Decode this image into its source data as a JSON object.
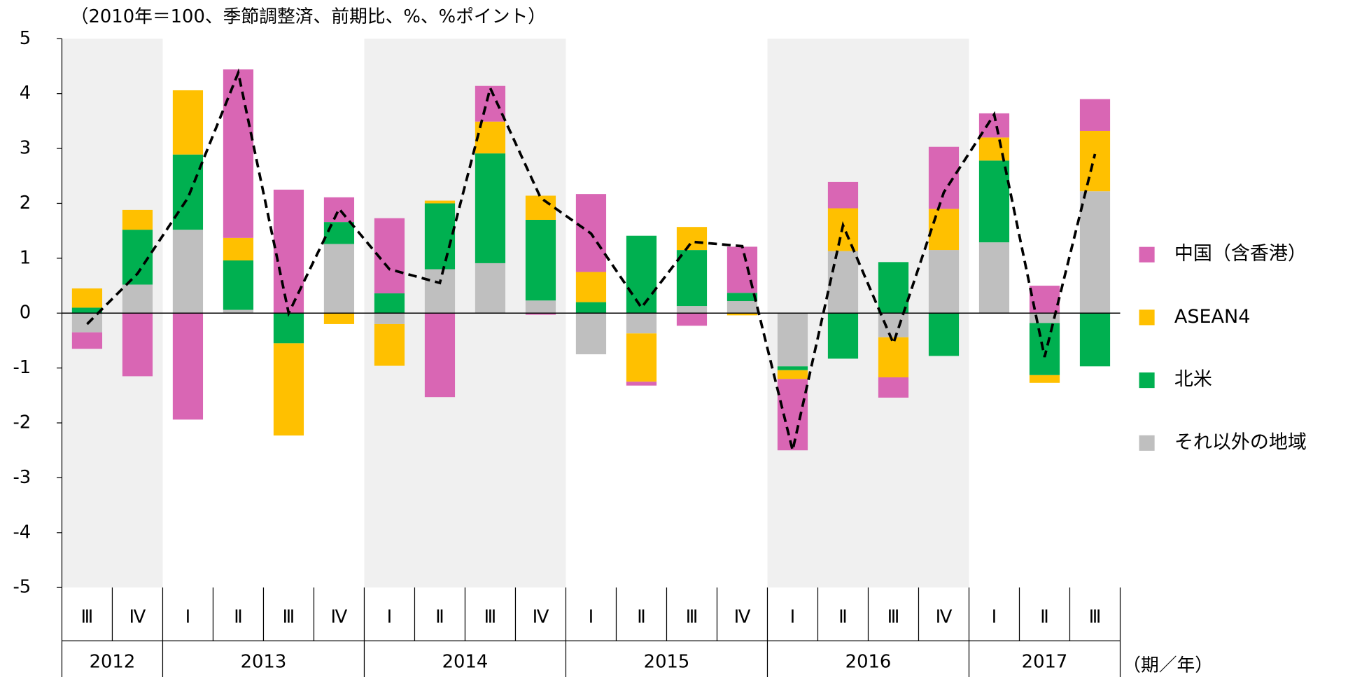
{
  "chart_data": {
    "type": "stacked-bar",
    "subtitle": "（2010年＝100、季節調整済、前期比、%、%ポイント）",
    "x_label": "（期／年）",
    "categories": [
      "Ⅲ",
      "Ⅳ",
      "Ⅰ",
      "Ⅱ",
      "Ⅲ",
      "Ⅳ",
      "Ⅰ",
      "Ⅱ",
      "Ⅲ",
      "Ⅳ",
      "Ⅰ",
      "Ⅱ",
      "Ⅲ",
      "Ⅳ",
      "Ⅰ",
      "Ⅱ",
      "Ⅲ",
      "Ⅳ",
      "Ⅰ",
      "Ⅱ",
      "Ⅲ"
    ],
    "groups": [
      {
        "label": "2012",
        "size": 2
      },
      {
        "label": "2013",
        "size": 4
      },
      {
        "label": "2014",
        "size": 4
      },
      {
        "label": "2015",
        "size": 4
      },
      {
        "label": "2016",
        "size": 4
      },
      {
        "label": "2017",
        "size": 3
      }
    ],
    "series": [
      {
        "name": "それ以外の地域",
        "color": "#bfbfbf",
        "values": [
          -0.35,
          0.52,
          1.52,
          0.06,
          0,
          1.26,
          -0.2,
          0.8,
          0.91,
          0.23,
          -0.75,
          -0.37,
          0.13,
          0.22,
          -0.97,
          1.13,
          -0.44,
          1.15,
          1.29,
          -0.18,
          2.22
        ]
      },
      {
        "name": "北米",
        "color": "#00b050",
        "values": [
          0.1,
          1.0,
          1.37,
          0.9,
          -0.55,
          0.4,
          0.36,
          1.2,
          2.0,
          1.47,
          0.2,
          1.41,
          1.02,
          0.15,
          -0.07,
          -0.83,
          0.93,
          -0.78,
          1.49,
          -0.95,
          -0.97
        ]
      },
      {
        "name": "ASEAN4",
        "color": "#ffc000",
        "values": [
          0.35,
          0.36,
          1.17,
          0.41,
          -1.68,
          -0.2,
          -0.76,
          0.05,
          0.58,
          0.44,
          0.55,
          -0.88,
          0.42,
          -0.04,
          -0.16,
          0.78,
          -0.73,
          0.75,
          0.42,
          -0.14,
          1.1
        ]
      },
      {
        "name": "中国（含香港）",
        "color": "#d966b4",
        "values": [
          -0.3,
          -1.15,
          -1.94,
          3.07,
          2.25,
          0.45,
          1.37,
          -1.53,
          0.65,
          -0.03,
          1.42,
          -0.07,
          -0.23,
          0.84,
          -1.3,
          0.48,
          -0.37,
          1.13,
          0.44,
          0.5,
          0.58
        ]
      }
    ],
    "line": {
      "color": "#000000",
      "dashed": true,
      "values": [
        -0.2,
        0.72,
        2.1,
        4.38,
        0,
        1.9,
        0.8,
        0.55,
        4.1,
        2.1,
        1.45,
        0.1,
        1.3,
        1.22,
        -2.5,
        1.6,
        -0.55,
        2.2,
        3.62,
        -0.8,
        2.9
      ]
    },
    "ylim": [
      -5,
      5
    ],
    "yticks": [
      5,
      4,
      3,
      2,
      1,
      0,
      -1,
      -2,
      -3,
      -4,
      -5
    ],
    "shading": "#f0f0f0"
  }
}
